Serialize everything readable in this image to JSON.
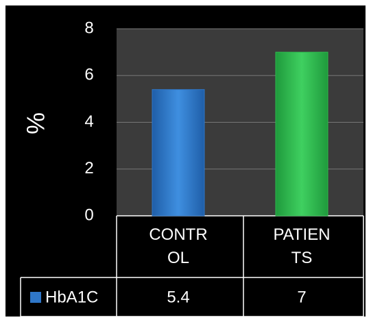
{
  "chart_data": {
    "type": "bar",
    "y_label": "%",
    "categories": [
      "CONTROL",
      "PATIENTS"
    ],
    "series": [
      {
        "name": "HbA1C",
        "color": "#2f77c9",
        "colors": [
          "#2f77c9",
          "#2fb84e"
        ],
        "values": [
          5.4,
          7
        ]
      }
    ],
    "ylim": [
      0,
      8
    ],
    "yticks": [
      0,
      2,
      4,
      6,
      8
    ],
    "grid": true
  }
}
